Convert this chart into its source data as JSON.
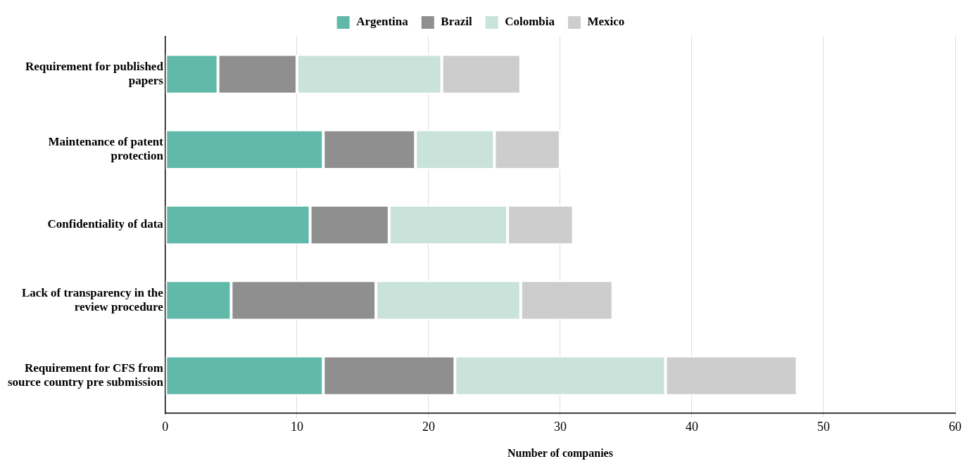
{
  "chart_data": {
    "type": "bar",
    "orientation": "horizontal",
    "stacked": true,
    "xlabel": "Number of companies",
    "categories": [
      "Requirement for published papers",
      "Maintenance of patent protection",
      "Confidentiality of data",
      "Lack of transparency in the review procedure",
      "Requirement for CFS from source country pre submission"
    ],
    "series": [
      {
        "name": "Argentina",
        "color": "#61b9aa",
        "values": [
          4,
          12,
          11,
          5,
          12
        ]
      },
      {
        "name": "Brazil",
        "color": "#8f8f8f",
        "values": [
          6,
          7,
          6,
          11,
          10
        ]
      },
      {
        "name": "Colombia",
        "color": "#c9e3da",
        "values": [
          11,
          6,
          9,
          11,
          16
        ]
      },
      {
        "name": "Mexico",
        "color": "#cdcdcd",
        "values": [
          6,
          5,
          5,
          7,
          10
        ]
      }
    ],
    "xlim": [
      0,
      60
    ],
    "xticks": [
      0,
      10,
      20,
      30,
      40,
      50,
      60
    ],
    "grid": "x",
    "legend": "top"
  }
}
